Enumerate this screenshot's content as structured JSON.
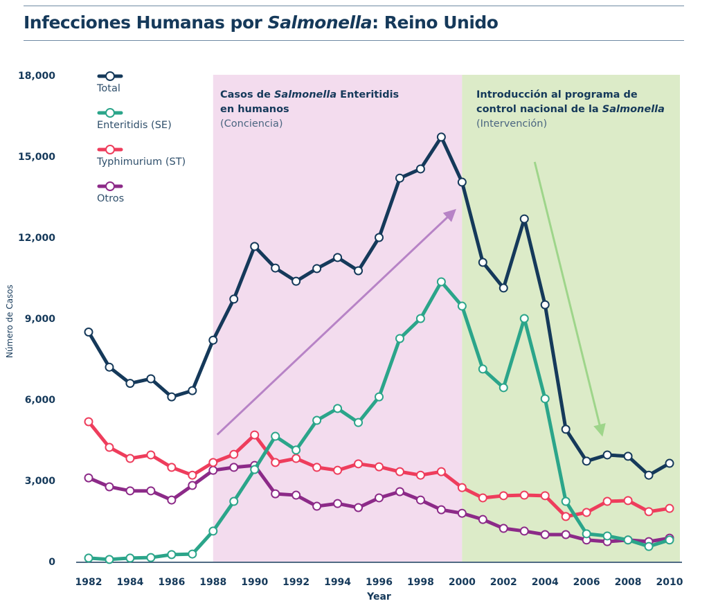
{
  "chart_data": {
    "type": "line",
    "title": "Infecciones Humanas por Salmonella: Reino Unido",
    "title_parts": {
      "pre": "Infecciones Humanas por ",
      "italic": "Salmonella",
      "post": ": Reino Unido"
    },
    "xlabel": "Year",
    "ylabel": "Número de Casos",
    "xlim": [
      1982,
      2010
    ],
    "ylim": [
      0,
      18000
    ],
    "yticks": [
      0,
      3000,
      6000,
      9000,
      12000,
      15000,
      18000
    ],
    "ytick_labels": [
      "0",
      "3,000",
      "6,000",
      "9,000",
      "12,000",
      "15,000",
      "18,000"
    ],
    "xticks": [
      1982,
      1984,
      1986,
      1988,
      1990,
      1992,
      1994,
      1996,
      1998,
      2000,
      2002,
      2004,
      2006,
      2008,
      2010
    ],
    "xtick_labels": [
      "1982",
      "1984",
      "1986",
      "1988",
      "1990",
      "1992",
      "1994",
      "1996",
      "1998",
      "2000",
      "2002",
      "2004",
      "2006",
      "2008",
      "2010"
    ],
    "grid": false,
    "legend_position": "top-left",
    "x": [
      1982,
      1983,
      1984,
      1985,
      1986,
      1987,
      1988,
      1989,
      1990,
      1991,
      1992,
      1993,
      1994,
      1995,
      1996,
      1997,
      1998,
      1999,
      2000,
      2001,
      2002,
      2003,
      2004,
      2005,
      2006,
      2007,
      2008,
      2009,
      2010
    ],
    "series": [
      {
        "name": "Total",
        "color": "#15395a",
        "values": [
          8500,
          7200,
          6600,
          6770,
          6100,
          6330,
          8200,
          9720,
          11670,
          10870,
          10380,
          10850,
          11260,
          10770,
          12000,
          14200,
          14540,
          15720,
          14050,
          11080,
          10130,
          12690,
          9510,
          4900,
          3720,
          3950,
          3900,
          3200,
          3640
        ]
      },
      {
        "name": "Enteritidis (SE)",
        "color": "#2ba58a",
        "values": [
          130,
          80,
          130,
          150,
          260,
          280,
          1130,
          2230,
          3410,
          4640,
          4130,
          5230,
          5670,
          5150,
          6100,
          8260,
          9000,
          10360,
          9460,
          7130,
          6440,
          9000,
          6030,
          2230,
          1030,
          950,
          800,
          560,
          800
        ]
      },
      {
        "name": "Typhimurium (ST)",
        "color": "#ee3d5c",
        "values": [
          5180,
          4230,
          3820,
          3950,
          3490,
          3200,
          3670,
          3970,
          4690,
          3670,
          3820,
          3490,
          3380,
          3620,
          3510,
          3330,
          3200,
          3330,
          2740,
          2360,
          2440,
          2460,
          2440,
          1670,
          1820,
          2230,
          2260,
          1850,
          1970
        ]
      },
      {
        "name": "Otros",
        "color": "#8c2a88",
        "values": [
          3100,
          2770,
          2620,
          2620,
          2280,
          2820,
          3380,
          3490,
          3560,
          2510,
          2460,
          2050,
          2150,
          2000,
          2360,
          2590,
          2280,
          1920,
          1790,
          1560,
          1230,
          1130,
          1000,
          1000,
          800,
          740,
          800,
          740,
          870
        ]
      }
    ],
    "regions": [
      {
        "from": 1988,
        "to": 2000,
        "color": "#f3dcee",
        "line1_pre": "Casos de ",
        "line1_italic": "Salmonella",
        "line1_post": " Enteritidis",
        "line2": "en humanos",
        "line3": "(Conciencia)"
      },
      {
        "from": 2000,
        "to": 2010.5,
        "color": "#dcebc8",
        "line1": "Introducción al programa de",
        "line2_pre": "control nacional de la ",
        "line2_italic": "Salmonella",
        "line3": "(Intervención)"
      }
    ],
    "trend_arrows": [
      {
        "from": [
          1988.2,
          4700
        ],
        "to": [
          1999.5,
          12900
        ],
        "color": "#b783c6",
        "meaning": "increasing"
      },
      {
        "from": [
          2003.5,
          14800
        ],
        "to": [
          2006.7,
          4850
        ],
        "color": "#9ed58a",
        "meaning": "decreasing"
      }
    ]
  }
}
